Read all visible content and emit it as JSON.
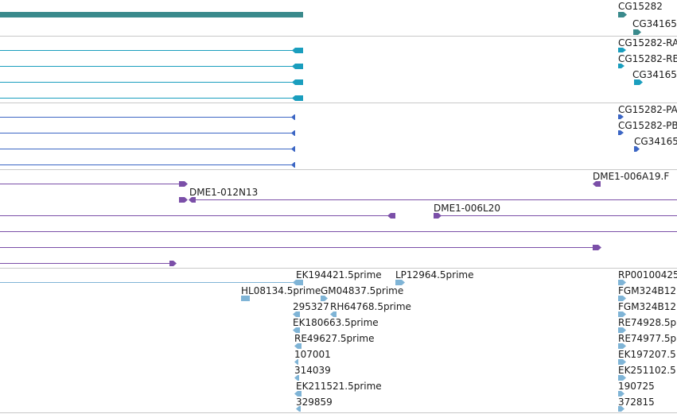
{
  "colors": {
    "gene": "#3a8a8c",
    "mrna": "#1a9ebe",
    "cds": "#3c66c4",
    "clone": "#7b4fa8",
    "est": "#7fb4d6",
    "separator": "#c8c8c8"
  },
  "tracks": {
    "genes": {
      "labels": [
        "CG15282",
        "CG34165"
      ]
    },
    "transcripts": {
      "labels": [
        "CG15282-RA",
        "CG15282-RB",
        "CG34165"
      ]
    },
    "proteins": {
      "labels": [
        "CG15282-PA",
        "CG15282-PB",
        "CG34165"
      ]
    },
    "clones": {
      "labels": [
        "DME1-006A19.F",
        "DME1-012N13",
        "DME1-006L20"
      ]
    },
    "ests": {
      "labels": [
        "EK194421.5prime",
        "LP12964.5prime",
        "RP00100425",
        "HL08134.5prime",
        "GM04837.5prime",
        "FGM324B12.",
        "295327",
        "RH64768.5prime",
        "FGM324B12.",
        "EK180663.5prime",
        "RE74928.5p",
        "RE49627.5prime",
        "RE74977.5p",
        "107001",
        "EK197207.5",
        "314039",
        "EK251102.5",
        "EK211521.5prime",
        "190725",
        "329859",
        "372815"
      ]
    }
  }
}
